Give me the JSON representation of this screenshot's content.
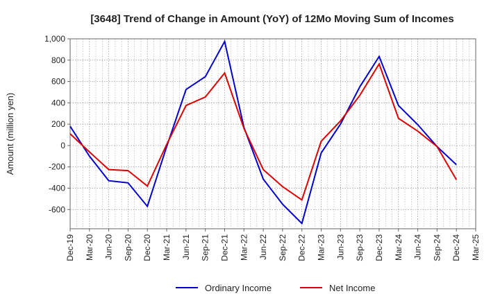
{
  "chart_data": {
    "type": "line",
    "title": "[3648]  Trend of Change in Amount (YoY) of 12Mo Moving Sum of Incomes",
    "xlabel": "",
    "ylabel": "Amount (million yen)",
    "ylim": [
      -780,
      1000
    ],
    "yticks": [
      1000,
      800,
      600,
      400,
      200,
      0,
      -200,
      -400,
      -600
    ],
    "ytick_labels": [
      "1,000",
      "800",
      "600",
      "400",
      "200",
      "0",
      "-200",
      "-400",
      "-600"
    ],
    "categories": [
      "Dec-19",
      "Mar-20",
      "Jun-20",
      "Sep-20",
      "Dec-20",
      "Mar-21",
      "Jun-21",
      "Sep-21",
      "Dec-21",
      "Mar-22",
      "Jun-22",
      "Sep-22",
      "Dec-22",
      "Mar-23",
      "Jun-23",
      "Sep-23",
      "Dec-23",
      "Mar-24",
      "Jun-24",
      "Sep-24",
      "Dec-24",
      "Mar-25"
    ],
    "grid": true,
    "legend_position": "bottom",
    "series": [
      {
        "name": "Ordinary Income",
        "color": "#0000cc",
        "values": [
          180,
          -100,
          -330,
          -350,
          -570,
          -10,
          525,
          645,
          975,
          170,
          -315,
          -550,
          -730,
          -70,
          200,
          550,
          835,
          375,
          195,
          -10,
          -180,
          null
        ]
      },
      {
        "name": "Net Income",
        "color": "#dd0000",
        "values": [
          110,
          -60,
          -225,
          -235,
          -380,
          10,
          375,
          455,
          680,
          160,
          -225,
          -385,
          -510,
          40,
          230,
          470,
          765,
          255,
          135,
          -10,
          -320,
          null
        ]
      }
    ]
  }
}
